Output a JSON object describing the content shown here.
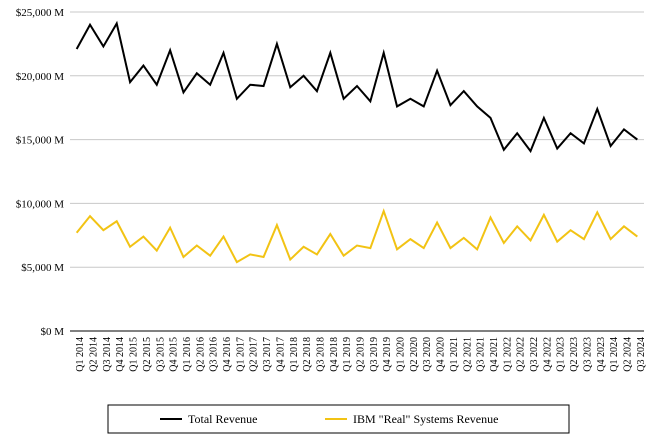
{
  "colors": {
    "total": "#000000",
    "systems": "#F2C314",
    "grid": "#c8c8c8",
    "axis": "#000000"
  },
  "chart_data": {
    "type": "line",
    "title": "",
    "xlabel": "",
    "ylabel": "",
    "ylim": [
      0,
      25000
    ],
    "y_unit": "M",
    "y_ticks": [
      "$0 M",
      "$5,000 M",
      "$10,000 M",
      "$15,000 M",
      "$20,000 M",
      "$25,000 M"
    ],
    "grid": "horizontal",
    "legend_position": "bottom",
    "categories": [
      "Q1 2014",
      "Q2 2014",
      "Q3 2014",
      "Q4 2014",
      "Q1 2015",
      "Q2 2015",
      "Q3 2015",
      "Q4 2015",
      "Q1 2016",
      "Q2 2016",
      "Q3 2016",
      "Q4 2016",
      "Q1 2017",
      "Q2 2017",
      "Q3 2017",
      "Q4 2017",
      "Q1 2018",
      "Q2 2018",
      "Q3 2018",
      "Q4 2018",
      "Q1 2019",
      "Q2 2019",
      "Q3 2019",
      "Q4 2019",
      "Q1 2020",
      "Q2 2020",
      "Q3 2020",
      "Q4 2020",
      "Q1 2021",
      "Q2 2021",
      "Q3 2021",
      "Q4 2021",
      "Q1 2022",
      "Q2 2022",
      "Q3 2022",
      "Q4 2022",
      "Q1 2023",
      "Q2 2023",
      "Q3 2023",
      "Q4 2023",
      "Q1 2024",
      "Q2 2024",
      "Q3 2024"
    ],
    "series": [
      {
        "name": "Total Revenue",
        "color": "#000000",
        "values": [
          22100,
          24000,
          22300,
          24100,
          19500,
          20800,
          19300,
          22000,
          18700,
          20200,
          19300,
          21800,
          18200,
          19300,
          19200,
          22500,
          19100,
          20000,
          18800,
          21800,
          18200,
          19200,
          18000,
          21800,
          17600,
          18200,
          17600,
          20400,
          17700,
          18800,
          17600,
          16700,
          14200,
          15500,
          14100,
          16700,
          14300,
          15500,
          14700,
          17400,
          14500,
          15800,
          15000
        ]
      },
      {
        "name": "IBM \"Real\" Systems Revenue",
        "color": "#F2C314",
        "values": [
          7700,
          9000,
          7900,
          8600,
          6600,
          7400,
          6300,
          8100,
          5800,
          6700,
          5900,
          7400,
          5400,
          6000,
          5800,
          8300,
          5600,
          6600,
          6000,
          7600,
          5900,
          6700,
          6500,
          9400,
          6400,
          7200,
          6500,
          8500,
          6500,
          7300,
          6400,
          8900,
          6900,
          8200,
          7100,
          9100,
          7000,
          7900,
          7200,
          9300,
          7200,
          8200,
          7400
        ]
      }
    ]
  }
}
